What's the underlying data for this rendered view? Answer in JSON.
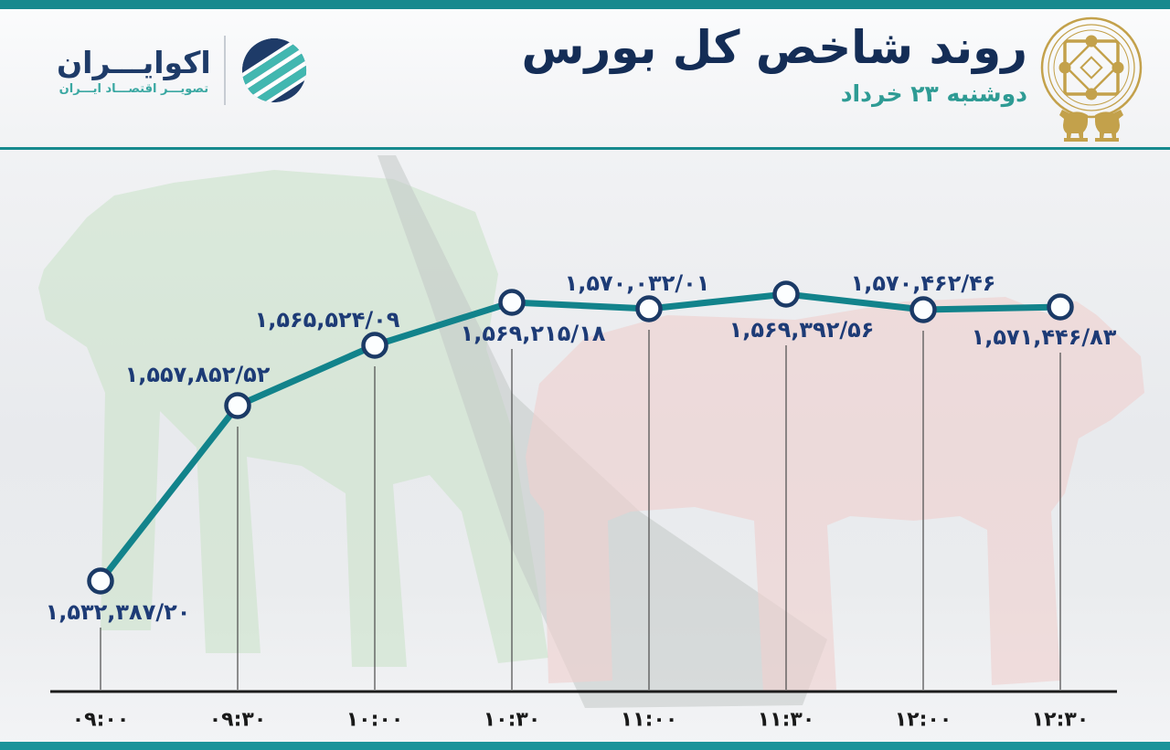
{
  "page": {
    "title": "روند شاخص کل بورس",
    "date": "دوشنبه ۲۳ خرداد"
  },
  "logo": {
    "wordmark": "اکوایـــران",
    "tagline": "تصویـــر اقتصـــاد ایـــران"
  },
  "chart_data": {
    "type": "line",
    "title": "روند شاخص کل بورس",
    "subtitle": "دوشنبه ۲۳ خرداد",
    "categories": [
      "۰۹:۰۰",
      "۰۹:۳۰",
      "۱۰:۰۰",
      "۱۰:۳۰",
      "۱۱:۰۰",
      "۱۱:۳۰",
      "۱۲:۰۰",
      "۱۲:۳۰"
    ],
    "series": [
      {
        "name": "شاخص کل بورس",
        "values": [
          1532387.2,
          1557852.52,
          1565524.09,
          1569215.18,
          1570032.01,
          1569392.56,
          1570462.46,
          1571446.83
        ],
        "value_labels": [
          "۱,۵۳۲,۳۸۷/۲۰",
          "۱,۵۵۷,۸۵۲/۵۲",
          "۱,۵۶۵,۵۲۴/۰۹",
          "۱,۵۶۹,۲۱۵/۱۸",
          "۱,۵۷۰,۰۳۲/۰۱",
          "۱,۵۶۹,۳۹۲/۵۶",
          "۱,۵۷۰,۴۶۲/۴۶",
          "۱,۵۷۱,۴۴۶/۸۳"
        ]
      }
    ],
    "ylim": [
      1530000,
      1575000
    ],
    "grid": "off",
    "legend": "none",
    "line_color": "#12838b",
    "marker_fill": "#fcfeff",
    "marker_stroke": "#1b3a66",
    "axis_color": "#1b1b1b",
    "label_color": "#1d3b76"
  },
  "colors": {
    "accent_teal": "#17898e",
    "title_navy": "#142d56",
    "value_label_blue": "#1d3b76",
    "date_teal": "#2e9b94",
    "emblem_gold": "#c3a14b",
    "bull_green": "#c9e2c6",
    "bear_pink": "#efd0ce",
    "arrow_gray": "#c2c9c7"
  }
}
